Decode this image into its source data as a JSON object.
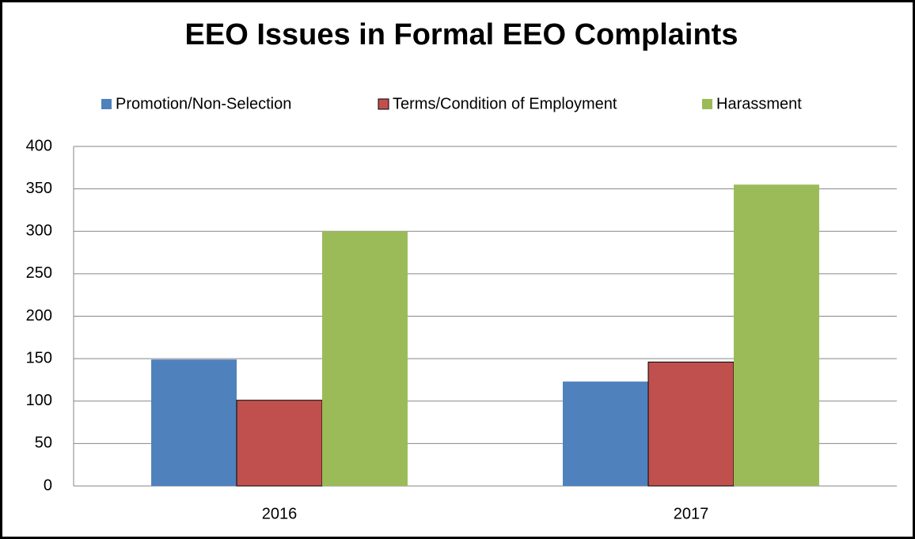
{
  "chart_data": {
    "type": "bar",
    "title": "EEO Issues in Formal EEO Complaints",
    "categories": [
      "2016",
      "2017"
    ],
    "series": [
      {
        "name": "Promotion/Non-Selection",
        "color": "#4f81bd",
        "values": [
          149,
          123
        ]
      },
      {
        "name": "Terms/Condition of Employment",
        "color": "#c0504d",
        "values": [
          101,
          146
        ]
      },
      {
        "name": "Harassment",
        "color": "#9bbb59",
        "values": [
          300,
          355
        ]
      }
    ],
    "ylim": [
      0,
      400
    ],
    "yticks": [
      0,
      50,
      100,
      150,
      200,
      250,
      300,
      350,
      400
    ],
    "grid": true,
    "legend": "top"
  }
}
